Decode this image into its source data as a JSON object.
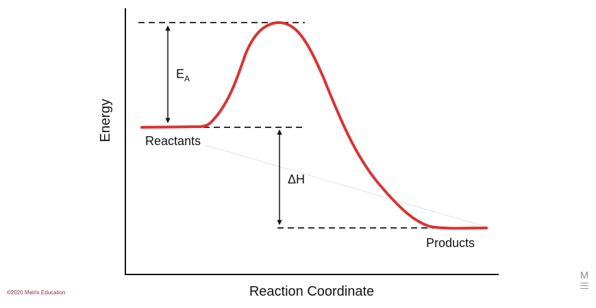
{
  "diagram": {
    "type": "energy-profile",
    "y_axis_label": "Energy",
    "x_axis_label": "Reaction Coordinate",
    "labels": {
      "activation_energy_main": "E",
      "activation_energy_sub": "A",
      "enthalpy_change": "ΔH",
      "reactants": "Reactants",
      "products": "Products"
    },
    "colors": {
      "curve": "#e03030",
      "axes": "#111111",
      "dashed_lines": "#111111"
    }
  },
  "footer": {
    "copyright": "©2020 Matrix Education",
    "logo_letter": "M"
  }
}
